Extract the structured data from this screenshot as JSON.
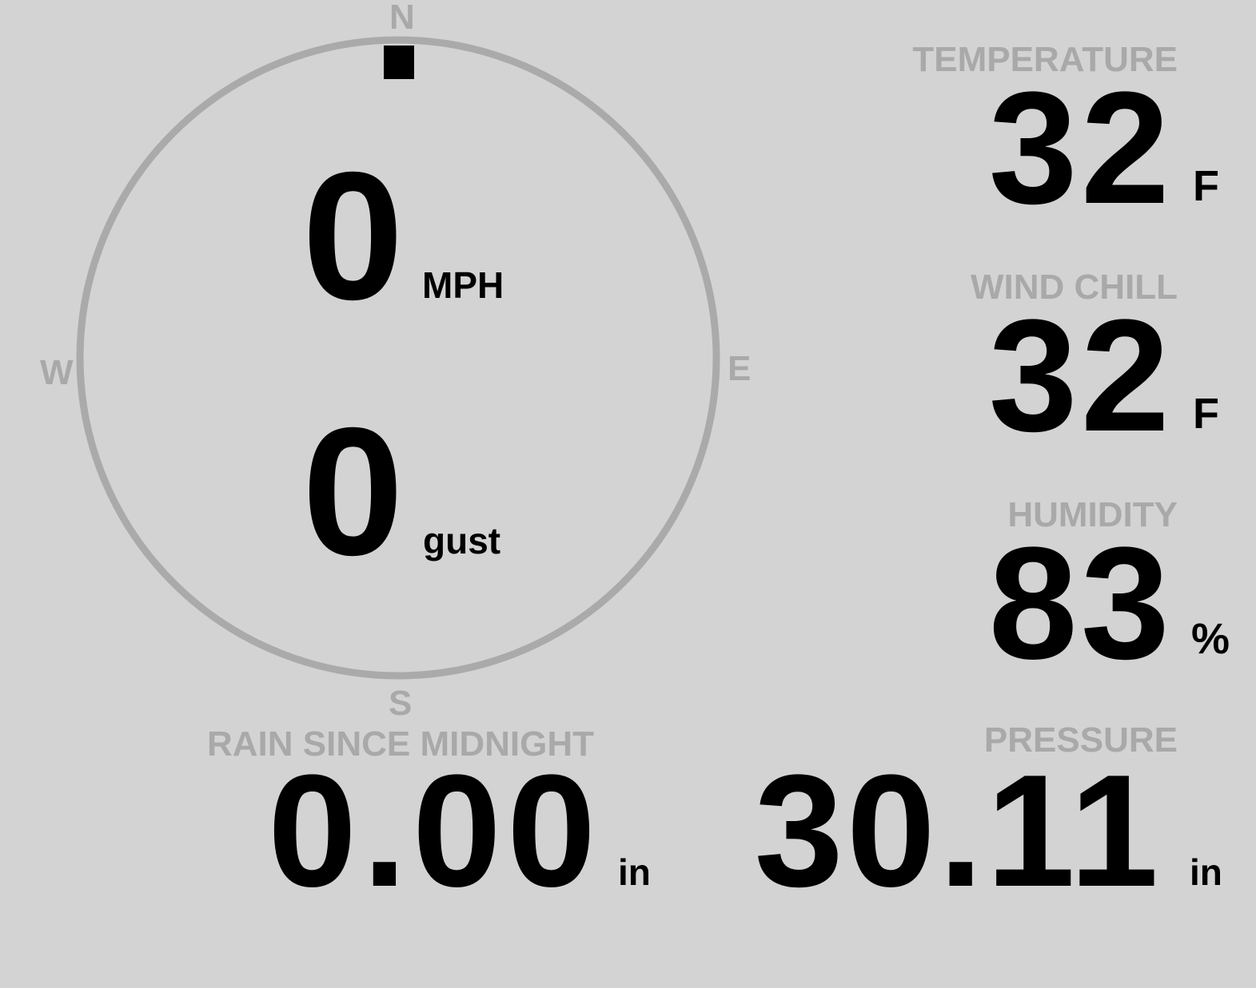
{
  "compass": {
    "north": "N",
    "east": "E",
    "south": "S",
    "west": "W",
    "wind_direction_deg": 0,
    "ring_color": "#aaaaaa",
    "pointer_color": "#000000"
  },
  "wind": {
    "speed": "0",
    "speed_unit": "MPH",
    "gust": "0",
    "gust_unit": "gust"
  },
  "temperature": {
    "label": "TEMPERATURE",
    "value": "32",
    "unit": "F"
  },
  "wind_chill": {
    "label": "WIND CHILL",
    "value": "32",
    "unit": "F"
  },
  "humidity": {
    "label": "HUMIDITY",
    "value": "83",
    "unit": "%"
  },
  "rain": {
    "label": "RAIN SINCE MIDNIGHT",
    "value": "0.00",
    "unit": "in"
  },
  "pressure": {
    "label": "PRESSURE",
    "value": "30.11",
    "unit": "in"
  },
  "colors": {
    "background": "#d3d3d3",
    "label": "#a9a9a9",
    "value": "#000000"
  }
}
